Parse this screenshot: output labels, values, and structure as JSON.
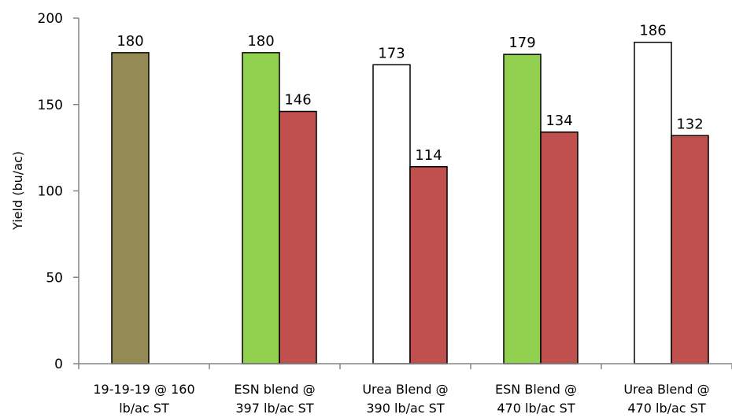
{
  "chart_data": {
    "type": "bar",
    "ylabel": "Yield (bu/ac)",
    "ylim": [
      0,
      200
    ],
    "yticks": [
      0,
      50,
      100,
      150,
      200
    ],
    "grid": false,
    "legend": "none",
    "groups": [
      {
        "label_lines": [
          "19-19-19 @ 160",
          "lb/ac ST"
        ],
        "bars": [
          {
            "value": 180,
            "label": "180",
            "color": "#948a54"
          }
        ]
      },
      {
        "label_lines": [
          "ESN blend @",
          "397 lb/ac ST"
        ],
        "bars": [
          {
            "value": 180,
            "label": "180",
            "color": "#92d050"
          },
          {
            "value": 146,
            "label": "146",
            "color": "#c0504d"
          }
        ]
      },
      {
        "label_lines": [
          "Urea Blend @",
          "390 lb/ac ST"
        ],
        "bars": [
          {
            "value": 173,
            "label": "173",
            "color": "#ffffff"
          },
          {
            "value": 114,
            "label": "114",
            "color": "#c0504d"
          }
        ]
      },
      {
        "label_lines": [
          "ESN Blend @",
          "470 lb/ac ST"
        ],
        "bars": [
          {
            "value": 179,
            "label": "179",
            "color": "#92d050"
          },
          {
            "value": 134,
            "label": "134",
            "color": "#c0504d"
          }
        ]
      },
      {
        "label_lines": [
          "Urea Blend @",
          "470 lb/ac ST"
        ],
        "bars": [
          {
            "value": 186,
            "label": "186",
            "color": "#ffffff"
          },
          {
            "value": 132,
            "label": "132",
            "color": "#c0504d"
          }
        ]
      }
    ]
  }
}
